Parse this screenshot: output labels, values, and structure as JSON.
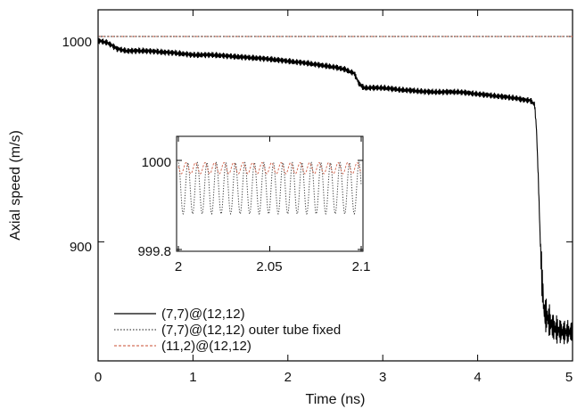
{
  "chart_data": {
    "type": "line",
    "xlabel": "Time (ns)",
    "ylabel": "Axial speed (m/s)",
    "xlim": [
      0,
      5
    ],
    "ylim": [
      842,
      1013
    ],
    "xticks": [
      "0",
      "1",
      "2",
      "3",
      "4",
      "5"
    ],
    "yticks": [
      "900",
      "1000"
    ],
    "grid": false,
    "legend_position": "bottom-left",
    "series": [
      {
        "name": "(7,7)@(12,12)",
        "style": "solid",
        "color": "#000000",
        "x": [
          0,
          0.1,
          0.2,
          0.3,
          0.5,
          0.8,
          1.0,
          1.2,
          1.5,
          1.8,
          2.0,
          2.2,
          2.5,
          2.6,
          2.7,
          2.75,
          2.8,
          2.9,
          3.0,
          3.2,
          3.5,
          3.8,
          4.0,
          4.2,
          4.4,
          4.5,
          4.55,
          4.6,
          4.62,
          4.64,
          4.66,
          4.68,
          4.7,
          4.8,
          4.9,
          5.0
        ],
        "y": [
          998,
          997,
          994,
          993,
          993,
          992,
          991,
          991,
          990,
          989,
          988,
          987,
          985,
          984,
          982,
          977,
          975,
          975,
          975,
          974,
          973,
          973,
          972,
          971,
          970,
          969,
          969,
          967,
          955,
          930,
          900,
          880,
          866,
          858,
          856,
          856
        ]
      },
      {
        "name": "(7,7)@(12,12) outer tube fixed",
        "style": "dotted",
        "color": "#444444",
        "x": [
          0,
          5
        ],
        "y": [
          1000,
          1000
        ]
      },
      {
        "name": "(11,2)@(12,12)",
        "style": "dashed",
        "color": "#d4705a",
        "x": [
          0,
          5
        ],
        "y": [
          1000,
          1000
        ]
      }
    ],
    "inset": {
      "xlim": [
        2,
        2.1
      ],
      "ylim": [
        999.8,
        1000.05
      ],
      "xticks": [
        "2",
        "2.05",
        "2.1"
      ],
      "yticks": [
        "999.8",
        "1000"
      ],
      "series": [
        {
          "name": "(7,7)@(12,12) outer tube fixed",
          "style": "dotted",
          "color": "#444444",
          "oscillation_period_ns": 0.0052,
          "min": 999.88,
          "max": 999.995
        },
        {
          "name": "(11,2)@(12,12)",
          "style": "dashed",
          "color": "#d4705a",
          "oscillation_period_ns": 0.0052,
          "min": 999.97,
          "max": 999.995
        }
      ]
    }
  }
}
